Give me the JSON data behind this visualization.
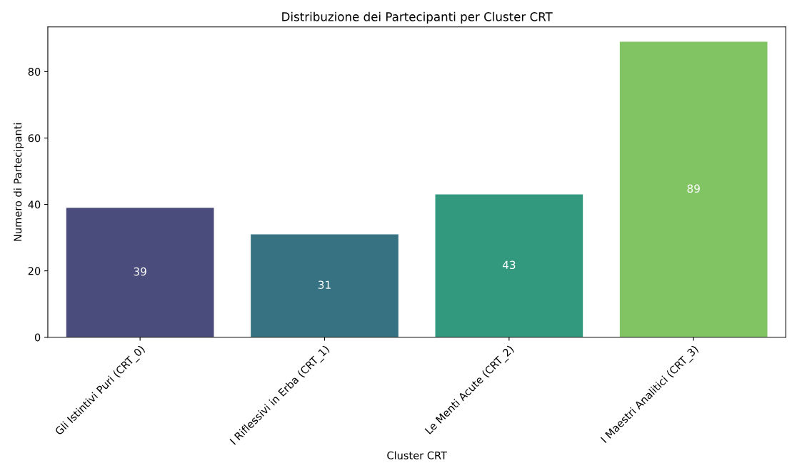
{
  "chart_data": {
    "type": "bar",
    "title": "Distribuzione dei Partecipanti per Cluster CRT",
    "xlabel": "Cluster CRT",
    "ylabel": "Numero di Partecipanti",
    "categories": [
      "Gli Istintivi Puri (CRT_0)",
      "I Riflessivi in Erba (CRT_1)",
      "Le Menti Acute (CRT_2)",
      "I Maestri Analitici (CRT_3)"
    ],
    "values": [
      39,
      31,
      43,
      89
    ],
    "colors": [
      "#4a4c7c",
      "#367282",
      "#32987e",
      "#80c463"
    ],
    "ylim": [
      0,
      93.45
    ],
    "yticks": [
      0,
      20,
      40,
      60,
      80
    ],
    "data_labels": true,
    "grid": false
  }
}
